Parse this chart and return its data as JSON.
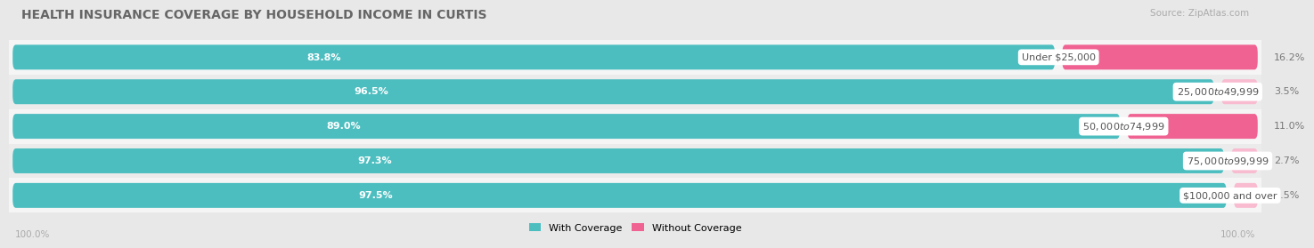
{
  "title": "HEALTH INSURANCE COVERAGE BY HOUSEHOLD INCOME IN CURTIS",
  "source": "Source: ZipAtlas.com",
  "categories": [
    "Under $25,000",
    "$25,000 to $49,999",
    "$50,000 to $74,999",
    "$75,000 to $99,999",
    "$100,000 and over"
  ],
  "with_coverage": [
    83.8,
    96.5,
    89.0,
    97.3,
    97.5
  ],
  "without_coverage": [
    16.2,
    3.5,
    11.0,
    2.7,
    2.5
  ],
  "color_with": "#4DBEC0",
  "color_without_row0": "#F06292",
  "color_without_row1": "#F8BBD0",
  "color_without_row2": "#F06292",
  "color_without_row3": "#F8BBD0",
  "color_without_row4": "#F8BBD0",
  "bg_color": "#e8e8e8",
  "row_bg_light": "#f5f5f5",
  "row_bg_dark": "#ebebeb",
  "title_fontsize": 10,
  "label_fontsize": 8,
  "cat_fontsize": 8,
  "source_fontsize": 7.5,
  "bottom_label": "100.0%",
  "legend_label_with": "With Coverage",
  "legend_label_without": "Without Coverage"
}
